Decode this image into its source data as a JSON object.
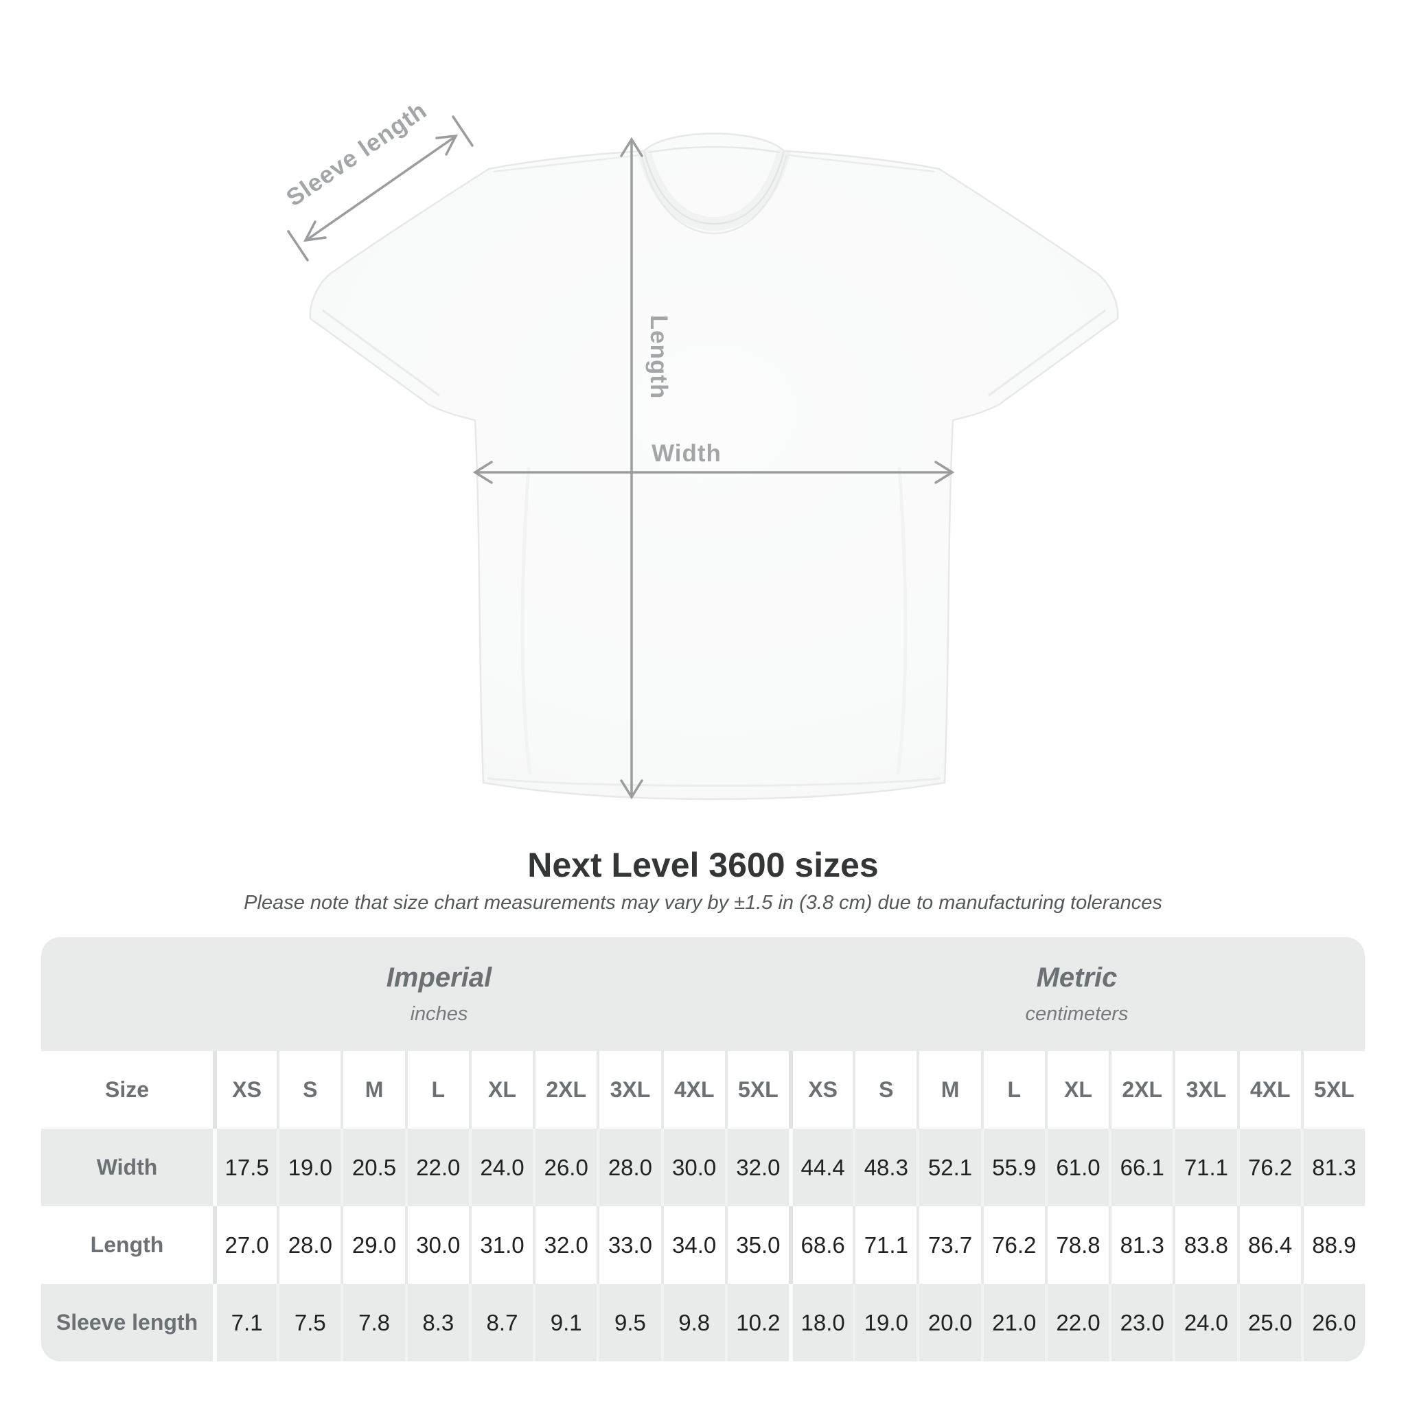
{
  "page": {
    "title": "Next Level 3600 sizes",
    "subtitle": "Please note that size chart measurements may vary by ±1.5 in (3.8 cm) due to manufacturing tolerances"
  },
  "diagram": {
    "garment": "t-shirt",
    "labels": {
      "sleeve": "Sleeve length",
      "length": "Length",
      "width": "Width"
    }
  },
  "size_chart": {
    "corner_label": "Size",
    "unit_groups": [
      {
        "name": "Imperial",
        "unit": "inches"
      },
      {
        "name": "Metric",
        "unit": "centimeters"
      }
    ],
    "sizes": [
      "XS",
      "S",
      "M",
      "L",
      "XL",
      "2XL",
      "3XL",
      "4XL",
      "5XL"
    ],
    "rows": [
      {
        "label": "Width",
        "imperial": [
          "17.5",
          "19.0",
          "20.5",
          "22.0",
          "24.0",
          "26.0",
          "28.0",
          "30.0",
          "32.0"
        ],
        "metric": [
          "44.4",
          "48.3",
          "52.1",
          "55.9",
          "61.0",
          "66.1",
          "71.1",
          "76.2",
          "81.3"
        ]
      },
      {
        "label": "Length",
        "imperial": [
          "27.0",
          "28.0",
          "29.0",
          "30.0",
          "31.0",
          "32.0",
          "33.0",
          "34.0",
          "35.0"
        ],
        "metric": [
          "68.6",
          "71.1",
          "73.7",
          "76.2",
          "78.8",
          "81.3",
          "83.8",
          "86.4",
          "88.9"
        ]
      },
      {
        "label": "Sleeve length",
        "imperial": [
          "7.1",
          "7.5",
          "7.8",
          "8.3",
          "8.7",
          "9.1",
          "9.5",
          "9.8",
          "10.2"
        ],
        "metric": [
          "18.0",
          "19.0",
          "20.0",
          "21.0",
          "22.0",
          "23.0",
          "24.0",
          "25.0",
          "26.0"
        ]
      }
    ]
  },
  "colors": {
    "table_bg": "#e9eaea",
    "white_row_bg": "#ffffff",
    "header_text": "#6b7074",
    "value_text": "#202122",
    "arrow": "#9a9c9e",
    "diagram_label": "#a3a6a8",
    "title_text": "#333537",
    "subtitle_text": "#55585a"
  }
}
